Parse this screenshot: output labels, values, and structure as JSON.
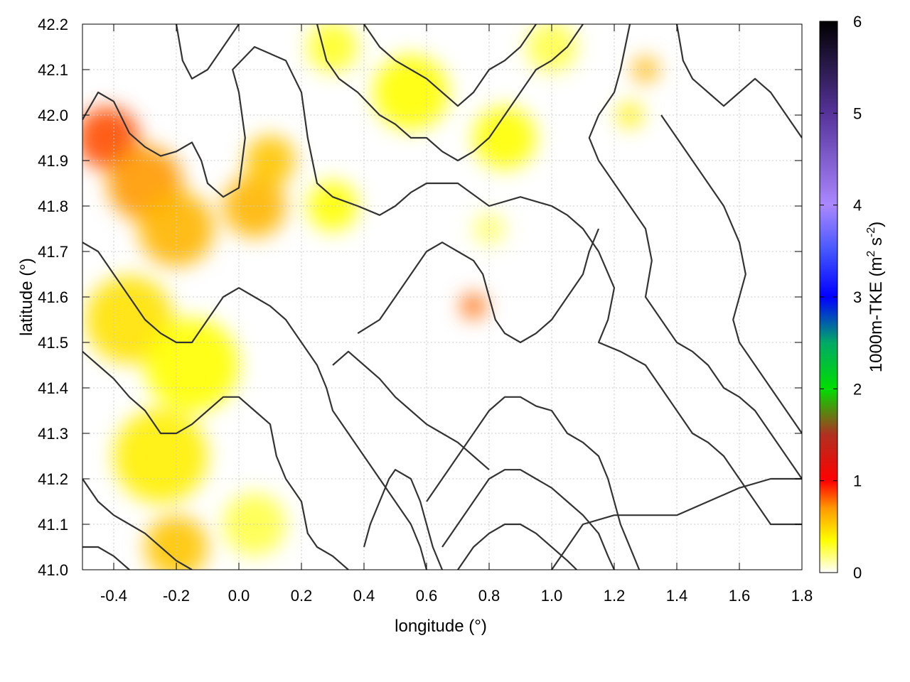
{
  "chart_data": {
    "type": "heatmap",
    "xlabel": "longitude (°)",
    "ylabel": "latitude (°)",
    "colorbar_label": "1000m-TKE (m² s⁻²)",
    "colorbar_label_main": "1000m-TKE (m",
    "colorbar_label_sup1": "2",
    "colorbar_label_mid": " s",
    "colorbar_label_sup2": "-2",
    "colorbar_label_end": ")",
    "xlim": [
      -0.5,
      1.8
    ],
    "ylim": [
      41.0,
      42.2
    ],
    "x_ticks": [
      "-0.4",
      "-0.2",
      "0.0",
      "0.2",
      "0.4",
      "0.6",
      "0.8",
      "1.0",
      "1.2",
      "1.4",
      "1.6",
      "1.8"
    ],
    "x_tick_values": [
      -0.4,
      -0.2,
      0.0,
      0.2,
      0.4,
      0.6,
      0.8,
      1.0,
      1.2,
      1.4,
      1.6,
      1.8
    ],
    "y_ticks": [
      "41.0",
      "41.1",
      "41.2",
      "41.3",
      "41.4",
      "41.5",
      "41.6",
      "41.7",
      "41.8",
      "41.9",
      "42.0",
      "42.1",
      "42.2"
    ],
    "y_tick_values": [
      41.0,
      41.1,
      41.2,
      41.3,
      41.4,
      41.5,
      41.6,
      41.7,
      41.8,
      41.9,
      42.0,
      42.1,
      42.2
    ],
    "colorbar_range": [
      0,
      6
    ],
    "colorbar_ticks": [
      "0",
      "1",
      "2",
      "3",
      "4",
      "5",
      "6"
    ],
    "colorbar_stops": [
      {
        "value": 0,
        "color": "#ffffff"
      },
      {
        "value": 0.35,
        "color": "#ffff00"
      },
      {
        "value": 0.7,
        "color": "#ff9900"
      },
      {
        "value": 1.0,
        "color": "#ff0000"
      },
      {
        "value": 1.5,
        "color": "#b03020"
      },
      {
        "value": 2.0,
        "color": "#00dd00"
      },
      {
        "value": 2.5,
        "color": "#00aa66"
      },
      {
        "value": 3.0,
        "color": "#0000ff"
      },
      {
        "value": 3.5,
        "color": "#4455ff"
      },
      {
        "value": 4.0,
        "color": "#aa88ff"
      },
      {
        "value": 5.0,
        "color": "#553399"
      },
      {
        "value": 6.0,
        "color": "#000000"
      }
    ],
    "grid": true,
    "contour_color": "#333333",
    "tke_regions": [
      {
        "lon": -0.42,
        "lat": 41.95,
        "r": 0.1,
        "value": 0.85
      },
      {
        "lon": -0.3,
        "lat": 41.85,
        "r": 0.12,
        "value": 0.7
      },
      {
        "lon": -0.2,
        "lat": 41.75,
        "r": 0.12,
        "value": 0.6
      },
      {
        "lon": -0.35,
        "lat": 41.55,
        "r": 0.14,
        "value": 0.45
      },
      {
        "lon": -0.15,
        "lat": 41.45,
        "r": 0.15,
        "value": 0.35
      },
      {
        "lon": 0.05,
        "lat": 41.8,
        "r": 0.1,
        "value": 0.6
      },
      {
        "lon": 0.1,
        "lat": 41.9,
        "r": 0.08,
        "value": 0.55
      },
      {
        "lon": -0.25,
        "lat": 41.25,
        "r": 0.15,
        "value": 0.4
      },
      {
        "lon": -0.2,
        "lat": 41.05,
        "r": 0.1,
        "value": 0.55
      },
      {
        "lon": 0.05,
        "lat": 41.1,
        "r": 0.1,
        "value": 0.25
      },
      {
        "lon": 0.3,
        "lat": 41.8,
        "r": 0.08,
        "value": 0.35
      },
      {
        "lon": 0.55,
        "lat": 42.05,
        "r": 0.12,
        "value": 0.35
      },
      {
        "lon": 0.85,
        "lat": 41.95,
        "r": 0.1,
        "value": 0.35
      },
      {
        "lon": 0.75,
        "lat": 41.58,
        "r": 0.04,
        "value": 0.8
      },
      {
        "lon": 0.8,
        "lat": 41.75,
        "r": 0.05,
        "value": 0.2
      },
      {
        "lon": 1.3,
        "lat": 42.1,
        "r": 0.04,
        "value": 0.6
      },
      {
        "lon": 1.25,
        "lat": 42.0,
        "r": 0.04,
        "value": 0.4
      },
      {
        "lon": 0.3,
        "lat": 42.15,
        "r": 0.08,
        "value": 0.3
      },
      {
        "lon": 1.0,
        "lat": 42.15,
        "r": 0.08,
        "value": 0.25
      }
    ],
    "contour_lines": [
      [
        [
          -0.5,
          41.99
        ],
        [
          -0.45,
          42.05
        ],
        [
          -0.4,
          42.03
        ],
        [
          -0.35,
          41.96
        ],
        [
          -0.3,
          41.93
        ],
        [
          -0.25,
          41.91
        ],
        [
          -0.2,
          41.92
        ],
        [
          -0.15,
          41.94
        ],
        [
          -0.12,
          41.9
        ],
        [
          -0.1,
          41.85
        ],
        [
          -0.05,
          41.82
        ],
        [
          0.0,
          41.84
        ],
        [
          0.02,
          41.95
        ],
        [
          0.0,
          42.05
        ],
        [
          -0.02,
          42.1
        ],
        [
          0.05,
          42.15
        ],
        [
          0.15,
          42.12
        ],
        [
          0.2,
          42.05
        ],
        [
          0.22,
          41.95
        ],
        [
          0.25,
          41.85
        ],
        [
          0.3,
          41.82
        ],
        [
          0.38,
          41.8
        ],
        [
          0.45,
          41.78
        ],
        [
          0.5,
          41.8
        ],
        [
          0.55,
          41.83
        ],
        [
          0.6,
          41.85
        ],
        [
          0.7,
          41.85
        ],
        [
          0.8,
          41.8
        ],
        [
          0.9,
          41.82
        ],
        [
          1.0,
          41.8
        ],
        [
          1.05,
          41.78
        ],
        [
          1.1,
          41.75
        ],
        [
          1.15,
          41.7
        ],
        [
          1.2,
          41.62
        ],
        [
          1.18,
          41.55
        ],
        [
          1.15,
          41.5
        ],
        [
          1.22,
          41.48
        ],
        [
          1.3,
          41.45
        ],
        [
          1.35,
          41.4
        ],
        [
          1.4,
          41.35
        ],
        [
          1.45,
          41.3
        ],
        [
          1.5,
          41.28
        ],
        [
          1.55,
          41.25
        ],
        [
          1.6,
          41.2
        ],
        [
          1.65,
          41.15
        ],
        [
          1.7,
          41.1
        ],
        [
          1.8,
          41.1
        ]
      ],
      [
        [
          -0.5,
          41.72
        ],
        [
          -0.45,
          41.7
        ],
        [
          -0.4,
          41.65
        ],
        [
          -0.35,
          41.6
        ],
        [
          -0.3,
          41.55
        ],
        [
          -0.25,
          41.52
        ],
        [
          -0.2,
          41.5
        ],
        [
          -0.15,
          41.5
        ],
        [
          -0.1,
          41.55
        ],
        [
          -0.05,
          41.6
        ],
        [
          0.0,
          41.62
        ],
        [
          0.05,
          41.6
        ],
        [
          0.1,
          41.58
        ],
        [
          0.15,
          41.55
        ],
        [
          0.2,
          41.5
        ],
        [
          0.25,
          41.45
        ],
        [
          0.28,
          41.4
        ],
        [
          0.3,
          41.35
        ],
        [
          0.35,
          41.3
        ],
        [
          0.4,
          41.25
        ],
        [
          0.45,
          41.2
        ],
        [
          0.5,
          41.15
        ],
        [
          0.55,
          41.1
        ],
        [
          0.58,
          41.05
        ],
        [
          0.6,
          41.0
        ]
      ],
      [
        [
          -0.5,
          41.48
        ],
        [
          -0.45,
          41.45
        ],
        [
          -0.4,
          41.42
        ],
        [
          -0.35,
          41.38
        ],
        [
          -0.3,
          41.35
        ],
        [
          -0.25,
          41.3
        ],
        [
          -0.2,
          41.3
        ],
        [
          -0.15,
          41.32
        ],
        [
          -0.1,
          41.35
        ],
        [
          -0.05,
          41.38
        ],
        [
          0.0,
          41.38
        ],
        [
          0.05,
          41.35
        ],
        [
          0.1,
          41.32
        ],
        [
          0.12,
          41.25
        ],
        [
          0.15,
          41.2
        ],
        [
          0.2,
          41.15
        ],
        [
          0.22,
          41.08
        ],
        [
          0.25,
          41.05
        ],
        [
          0.3,
          41.03
        ],
        [
          0.35,
          41.0
        ]
      ],
      [
        [
          -0.5,
          41.2
        ],
        [
          -0.45,
          41.15
        ],
        [
          -0.4,
          41.12
        ],
        [
          -0.35,
          41.1
        ],
        [
          -0.3,
          41.08
        ],
        [
          -0.25,
          41.05
        ],
        [
          -0.2,
          41.02
        ],
        [
          -0.15,
          41.0
        ]
      ],
      [
        [
          -0.5,
          41.05
        ],
        [
          -0.45,
          41.05
        ],
        [
          -0.4,
          41.03
        ],
        [
          -0.35,
          41.0
        ]
      ],
      [
        [
          0.6,
          41.15
        ],
        [
          0.65,
          41.2
        ],
        [
          0.7,
          41.25
        ],
        [
          0.75,
          41.3
        ],
        [
          0.8,
          41.35
        ],
        [
          0.85,
          41.38
        ],
        [
          0.9,
          41.38
        ],
        [
          0.95,
          41.36
        ],
        [
          1.0,
          41.35
        ],
        [
          1.05,
          41.3
        ],
        [
          1.1,
          41.28
        ],
        [
          1.15,
          41.25
        ],
        [
          1.18,
          41.2
        ],
        [
          1.2,
          41.15
        ],
        [
          1.22,
          41.1
        ],
        [
          1.25,
          41.05
        ],
        [
          1.28,
          41.0
        ]
      ],
      [
        [
          0.65,
          41.05
        ],
        [
          0.7,
          41.1
        ],
        [
          0.75,
          41.15
        ],
        [
          0.8,
          41.2
        ],
        [
          0.85,
          41.22
        ],
        [
          0.9,
          41.22
        ],
        [
          0.95,
          41.2
        ],
        [
          1.0,
          41.18
        ],
        [
          1.05,
          41.15
        ],
        [
          1.1,
          41.12
        ],
        [
          1.15,
          41.08
        ],
        [
          1.18,
          41.03
        ],
        [
          1.2,
          41.0
        ]
      ],
      [
        [
          0.7,
          41.0
        ],
        [
          0.75,
          41.05
        ],
        [
          0.8,
          41.08
        ],
        [
          0.85,
          41.1
        ],
        [
          0.9,
          41.1
        ],
        [
          0.95,
          41.08
        ],
        [
          1.0,
          41.05
        ],
        [
          1.05,
          41.02
        ],
        [
          1.08,
          41.0
        ]
      ],
      [
        [
          0.38,
          41.52
        ],
        [
          0.45,
          41.55
        ],
        [
          0.5,
          41.6
        ],
        [
          0.55,
          41.65
        ],
        [
          0.6,
          41.7
        ],
        [
          0.65,
          41.72
        ],
        [
          0.7,
          41.7
        ],
        [
          0.75,
          41.68
        ],
        [
          0.78,
          41.65
        ],
        [
          0.8,
          41.6
        ],
        [
          0.82,
          41.55
        ],
        [
          0.85,
          41.52
        ],
        [
          0.9,
          41.5
        ],
        [
          0.95,
          41.52
        ],
        [
          1.0,
          41.55
        ],
        [
          1.05,
          41.6
        ],
        [
          1.1,
          41.65
        ],
        [
          1.12,
          41.7
        ],
        [
          1.15,
          41.75
        ]
      ],
      [
        [
          0.3,
          41.45
        ],
        [
          0.35,
          41.48
        ],
        [
          0.4,
          41.45
        ],
        [
          0.45,
          41.42
        ],
        [
          0.5,
          41.38
        ],
        [
          0.55,
          41.35
        ],
        [
          0.6,
          41.32
        ],
        [
          0.65,
          41.3
        ],
        [
          0.7,
          41.28
        ],
        [
          0.75,
          41.25
        ],
        [
          0.8,
          41.22
        ]
      ],
      [
        [
          1.25,
          42.2
        ],
        [
          1.22,
          42.1
        ],
        [
          1.2,
          42.05
        ],
        [
          1.15,
          42.0
        ],
        [
          1.12,
          41.95
        ],
        [
          1.15,
          41.9
        ],
        [
          1.2,
          41.85
        ],
        [
          1.25,
          41.8
        ],
        [
          1.3,
          41.75
        ],
        [
          1.32,
          41.68
        ],
        [
          1.3,
          41.6
        ],
        [
          1.35,
          41.55
        ],
        [
          1.4,
          41.5
        ],
        [
          1.45,
          41.48
        ],
        [
          1.5,
          41.45
        ],
        [
          1.55,
          41.4
        ],
        [
          1.6,
          41.38
        ],
        [
          1.65,
          41.35
        ],
        [
          1.7,
          41.3
        ],
        [
          1.75,
          41.25
        ],
        [
          1.8,
          41.2
        ]
      ],
      [
        [
          1.4,
          42.2
        ],
        [
          1.42,
          42.12
        ],
        [
          1.45,
          42.08
        ],
        [
          1.5,
          42.05
        ],
        [
          1.55,
          42.02
        ],
        [
          1.6,
          42.05
        ],
        [
          1.65,
          42.08
        ],
        [
          1.7,
          42.05
        ],
        [
          1.75,
          42.0
        ],
        [
          1.8,
          41.95
        ]
      ],
      [
        [
          1.35,
          42.0
        ],
        [
          1.4,
          41.95
        ],
        [
          1.45,
          41.9
        ],
        [
          1.5,
          41.85
        ],
        [
          1.55,
          41.8
        ],
        [
          1.6,
          41.72
        ],
        [
          1.62,
          41.65
        ],
        [
          1.6,
          41.6
        ],
        [
          1.58,
          41.55
        ],
        [
          1.6,
          41.5
        ],
        [
          1.65,
          41.45
        ],
        [
          1.7,
          41.4
        ],
        [
          1.75,
          41.35
        ],
        [
          1.8,
          41.3
        ]
      ],
      [
        [
          0.25,
          42.2
        ],
        [
          0.28,
          42.12
        ],
        [
          0.32,
          42.08
        ],
        [
          0.38,
          42.05
        ],
        [
          0.45,
          42.0
        ],
        [
          0.5,
          41.98
        ],
        [
          0.55,
          41.95
        ],
        [
          0.6,
          41.95
        ],
        [
          0.65,
          41.92
        ],
        [
          0.7,
          41.9
        ],
        [
          0.75,
          41.92
        ],
        [
          0.8,
          41.95
        ],
        [
          0.85,
          42.0
        ],
        [
          0.9,
          42.05
        ],
        [
          0.95,
          42.1
        ],
        [
          1.0,
          42.12
        ],
        [
          1.05,
          42.15
        ],
        [
          1.1,
          42.2
        ]
      ],
      [
        [
          0.4,
          42.2
        ],
        [
          0.45,
          42.15
        ],
        [
          0.5,
          42.12
        ],
        [
          0.55,
          42.1
        ],
        [
          0.6,
          42.08
        ],
        [
          0.65,
          42.05
        ],
        [
          0.7,
          42.02
        ],
        [
          0.75,
          42.05
        ],
        [
          0.8,
          42.1
        ],
        [
          0.85,
          42.12
        ],
        [
          0.9,
          42.15
        ],
        [
          0.95,
          42.2
        ]
      ],
      [
        [
          -0.2,
          42.2
        ],
        [
          -0.18,
          42.12
        ],
        [
          -0.15,
          42.08
        ],
        [
          -0.1,
          42.1
        ],
        [
          -0.05,
          42.15
        ],
        [
          0.0,
          42.2
        ]
      ],
      [
        [
          0.4,
          41.05
        ],
        [
          0.42,
          41.1
        ],
        [
          0.45,
          41.15
        ],
        [
          0.48,
          41.2
        ],
        [
          0.5,
          41.22
        ],
        [
          0.55,
          41.2
        ],
        [
          0.58,
          41.15
        ],
        [
          0.6,
          41.1
        ],
        [
          0.62,
          41.05
        ],
        [
          0.65,
          41.0
        ]
      ],
      [
        [
          1.0,
          41.0
        ],
        [
          1.05,
          41.05
        ],
        [
          1.1,
          41.1
        ],
        [
          1.2,
          41.12
        ],
        [
          1.3,
          41.12
        ],
        [
          1.4,
          41.12
        ],
        [
          1.5,
          41.15
        ],
        [
          1.6,
          41.18
        ],
        [
          1.7,
          41.2
        ],
        [
          1.8,
          41.2
        ]
      ]
    ]
  }
}
